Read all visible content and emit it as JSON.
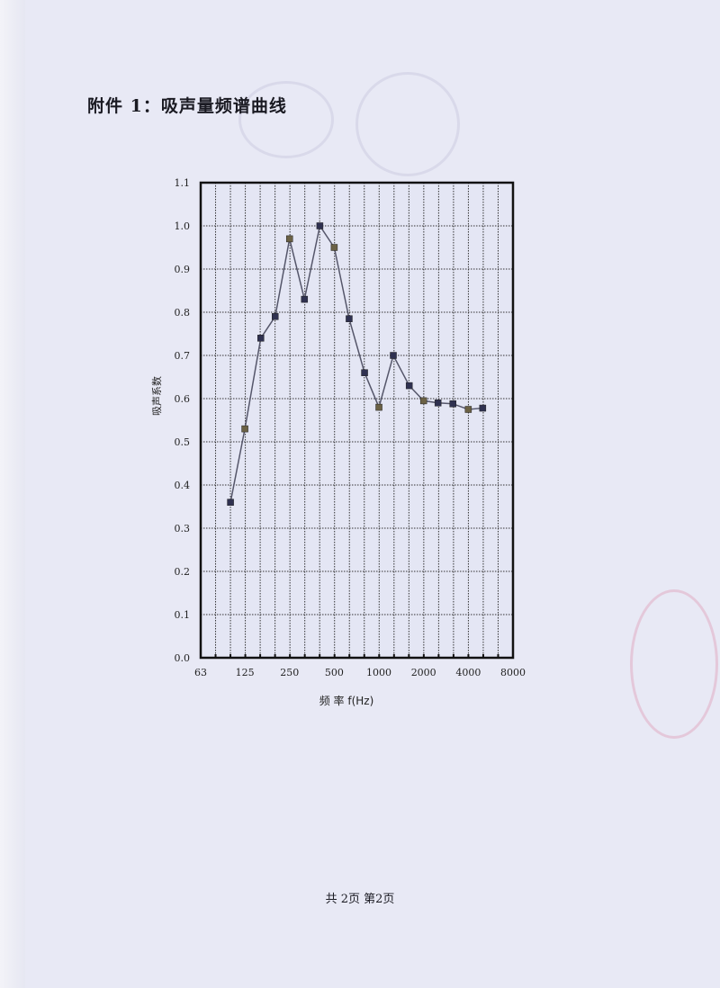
{
  "document": {
    "title": "附件 1：吸声量频谱曲线",
    "footer": "共 2页 第2页"
  },
  "chart_data": {
    "type": "line",
    "title": "",
    "xlabel": "频 率 f(Hz)",
    "ylabel": "吸声系数",
    "x_scale": "log (1/3 octave)",
    "x_tick_labels": [
      "63",
      "125",
      "250",
      "500",
      "1000",
      "2000",
      "4000",
      "8000"
    ],
    "xlim": [
      63,
      8000
    ],
    "ylim": [
      0.0,
      1.1
    ],
    "y_tick_labels": [
      "0.0",
      "0.1",
      "0.2",
      "0.3",
      "0.4",
      "0.5",
      "0.6",
      "0.7",
      "0.8",
      "0.9",
      "1.0",
      "1.1"
    ],
    "grid": true,
    "marker": "square",
    "line_color": "#55566a",
    "x": [
      100,
      125,
      160,
      200,
      250,
      315,
      400,
      500,
      630,
      800,
      1000,
      1250,
      1600,
      2000,
      2500,
      3150,
      4000,
      5000
    ],
    "values": [
      0.36,
      0.53,
      0.74,
      0.79,
      0.97,
      0.83,
      1.0,
      0.95,
      0.785,
      0.66,
      0.58,
      0.7,
      0.63,
      0.595,
      0.59,
      0.588,
      0.575,
      0.578
    ]
  }
}
